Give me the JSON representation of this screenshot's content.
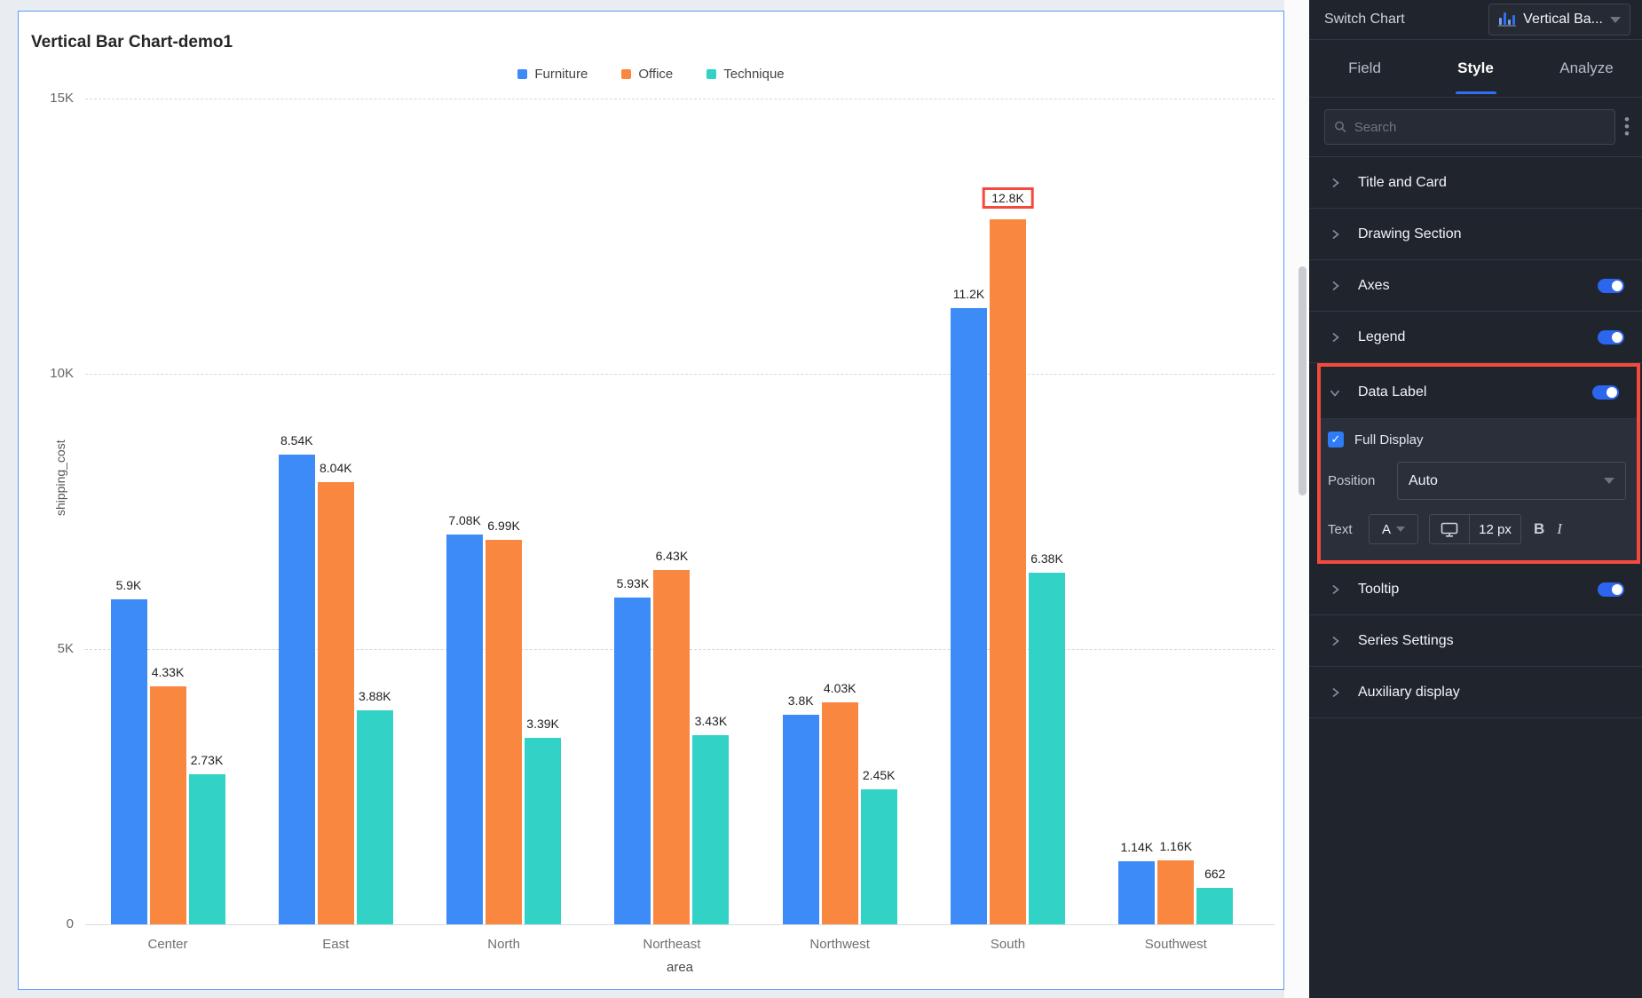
{
  "chart_data": {
    "type": "bar",
    "title": "Vertical Bar Chart-demo1",
    "categories": [
      "Center",
      "East",
      "North",
      "Northeast",
      "Northwest",
      "South",
      "Southwest"
    ],
    "series": [
      {
        "name": "Furniture",
        "color": "#3D8BF7",
        "values": [
          5900,
          8540,
          7080,
          5930,
          3800,
          11200,
          1140
        ],
        "labels": [
          "5.9K",
          "8.54K",
          "7.08K",
          "5.93K",
          "3.8K",
          "11.2K",
          "1.14K"
        ]
      },
      {
        "name": "Office",
        "color": "#F9873F",
        "values": [
          4330,
          8040,
          6990,
          6430,
          4030,
          12800,
          1160
        ],
        "labels": [
          "4.33K",
          "8.04K",
          "6.99K",
          "6.43K",
          "4.03K",
          "12.8K",
          "1.16K"
        ]
      },
      {
        "name": "Technique",
        "color": "#32D3C6",
        "values": [
          2730,
          3880,
          3390,
          3430,
          2450,
          6380,
          662
        ],
        "labels": [
          "2.73K",
          "3.88K",
          "3.39K",
          "3.43K",
          "2.45K",
          "6.38K",
          "662"
        ]
      }
    ],
    "xlabel": "area",
    "ylabel": "shipping_cost",
    "ylim": [
      0,
      15000
    ],
    "yticks": [
      {
        "value": 0,
        "label": "0"
      },
      {
        "value": 5000,
        "label": "5K"
      },
      {
        "value": 10000,
        "label": "10K"
      },
      {
        "value": 15000,
        "label": "15K"
      }
    ],
    "grid": "horizontal-dashed",
    "legend_position": "top",
    "highlighted_data_label": {
      "series": "Office",
      "category": "South",
      "label": "12.8K"
    }
  },
  "panel": {
    "header": {
      "label": "Switch Chart",
      "chart_type_value": "Vertical Ba...",
      "chart_type_icon": "bar-chart-icon"
    },
    "tabs": [
      {
        "label": "Field",
        "active": false
      },
      {
        "label": "Style",
        "active": true
      },
      {
        "label": "Analyze",
        "active": false
      }
    ],
    "search": {
      "placeholder": "Search"
    },
    "sections": [
      {
        "label": "Title and Card",
        "expanded": false,
        "has_toggle": false
      },
      {
        "label": "Drawing Section",
        "expanded": false,
        "has_toggle": false
      },
      {
        "label": "Axes",
        "expanded": false,
        "has_toggle": true,
        "toggle_on": true
      },
      {
        "label": "Legend",
        "expanded": false,
        "has_toggle": true,
        "toggle_on": true
      },
      {
        "label": "Data Label",
        "expanded": true,
        "has_toggle": true,
        "toggle_on": true,
        "highlighted": true
      },
      {
        "label": "Tooltip",
        "expanded": false,
        "has_toggle": true,
        "toggle_on": true
      },
      {
        "label": "Series Settings",
        "expanded": false,
        "has_toggle": false
      },
      {
        "label": "Auxiliary display",
        "expanded": false,
        "has_toggle": false
      }
    ],
    "data_label_controls": {
      "full_display": {
        "label": "Full Display",
        "checked": true,
        "check_glyph": "✓"
      },
      "position": {
        "label": "Position",
        "value": "Auto"
      },
      "text": {
        "label": "Text",
        "font_color_button": "A",
        "size_value": "12 px",
        "bold": "B",
        "italic": "I"
      }
    }
  },
  "icons": {
    "search-icon": "magnifier",
    "kebab-icon": "⋮",
    "chevron-right-icon": "›",
    "chevron-down-icon": "ˇ",
    "caret-down-icon": "▾",
    "bar-chart-icon": "ılıı",
    "monitor-icon": "display"
  },
  "colors": {
    "accent_blue": "#2F6FF2",
    "annotation_red": "#F5493D",
    "card_border_blue": "#5A9CF8",
    "panel_bg": "#20242D",
    "bar_blue": "#3D8BF7",
    "bar_orange": "#F9873F",
    "bar_teal": "#32D3C6"
  }
}
